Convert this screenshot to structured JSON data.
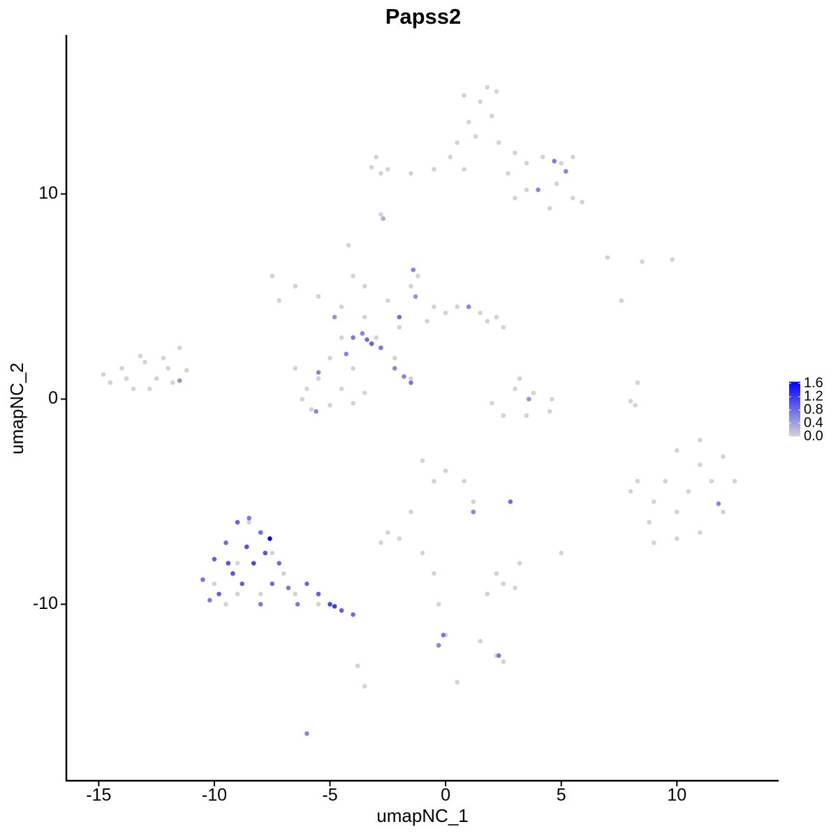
{
  "chart_data": {
    "type": "scatter",
    "title": "Papss2",
    "x_label": "umapNC_1",
    "y_label": "umapNC_2",
    "xlim": [
      -16.4,
      14.4
    ],
    "ylim": [
      -18.6,
      17.75
    ],
    "xticks": [
      -15,
      -10,
      -5,
      0,
      5,
      10
    ],
    "yticks": [
      -10,
      0,
      10
    ],
    "low_color": "#d3d3d3",
    "high_color": "#0000ff",
    "color_lim": [
      0,
      1.65
    ],
    "color_ticks": [
      {
        "value": 0,
        "label": "0.0"
      },
      0.4,
      0.8,
      1.2,
      1.6
    ],
    "x": [
      0.8,
      1.5,
      1.0,
      2.0,
      1.3,
      2.3,
      3.0,
      3.5,
      4.2,
      5.0,
      5.5,
      4.8,
      5.5,
      4.5,
      3.5,
      2.7,
      0.8,
      0.2,
      -0.5,
      -1.5,
      -2.5,
      -3.0,
      -2.8,
      -3.2,
      0.5,
      1.8,
      2.2,
      5.9,
      3.0,
      -2.8,
      -7.5,
      -6.5,
      -5.5,
      -4.5,
      -3.5,
      -4.2,
      -4.0,
      -3.5,
      -2.5,
      -1.5,
      -1.2,
      -0.5,
      0.5,
      1.5,
      2.2,
      2.5,
      1.8,
      -2.0,
      -3.0,
      -4.5,
      -5.0,
      -5.5,
      -6.0,
      -6.2,
      -5.8,
      -5.0,
      -4.5,
      -4.0,
      -4.0,
      -3.5,
      -6.5,
      -7.2,
      -0.8,
      0.0,
      -2.2,
      -1.5,
      -14.5,
      -14.0,
      -13.5,
      -13.0,
      -12.5,
      -12.0,
      -11.5,
      -13.8,
      -12.8,
      -11.8,
      -11.2,
      -14.8,
      -13.2,
      -12.2,
      2.0,
      2.5,
      3.5,
      4.5,
      4.6,
      3.0,
      3.2,
      3.8,
      8.0,
      8.3,
      8.2,
      7.0,
      8.5,
      9.8,
      7.6,
      8.0,
      8.8,
      9.0,
      10.0,
      11.0,
      12.0,
      12.5,
      12.0,
      11.0,
      10.0,
      9.5,
      10.5,
      11.5,
      10.0,
      9.0,
      11.0,
      8.3,
      -1.0,
      0.0,
      0.8,
      1.2,
      -0.5,
      -1.5,
      -2.5,
      -2.8,
      -2.0,
      -1.0,
      -0.5,
      -0.3,
      0.0,
      -0.3,
      1.5,
      2.2,
      2.5,
      1.8,
      2.5,
      3.0,
      2.2,
      3.2,
      5.0,
      -3.5,
      -3.8,
      0.5,
      -10.0,
      -9.0,
      -8.0,
      -9.5,
      -8.5,
      -7.5,
      -6.5,
      -5.5,
      -9.0,
      -7.0,
      4.7,
      5.2,
      4.0,
      -2.7,
      -3.2,
      -2.8,
      -3.4,
      -2.2,
      -1.8,
      -1.5,
      -4.3,
      -4.0,
      -2.0,
      -1.4,
      -5.5,
      -5.6,
      -1.3,
      1.0,
      -4.8,
      -3.6,
      -11.5,
      3.6,
      11.8,
      1.2,
      2.8,
      -0.1,
      -0.3,
      2.3,
      -6.0,
      -10.5,
      -10.0,
      -9.5,
      -9.0,
      -8.5,
      -8.0,
      -7.8,
      -9.2,
      -8.8,
      -8.3,
      -7.5,
      -9.8,
      -10.2,
      -8.0,
      -6.8,
      -6.0,
      -5.5,
      -5.0,
      -4.8,
      -4.5,
      -4.0,
      -9.4,
      -8.6,
      -7.2,
      -6.4,
      -7.6
    ],
    "values": [
      14.8,
      14.5,
      13.5,
      13.8,
      12.8,
      12.5,
      12.0,
      11.5,
      11.8,
      11.5,
      11.8,
      10.5,
      9.8,
      9.3,
      10.2,
      11.0,
      11.2,
      11.8,
      11.2,
      11.0,
      11.2,
      11.8,
      11.0,
      11.3,
      12.5,
      15.2,
      15.0,
      9.6,
      9.8,
      9.0,
      6.0,
      5.5,
      5.0,
      4.5,
      4.0,
      7.5,
      6.0,
      5.5,
      4.8,
      5.5,
      6.0,
      4.5,
      4.5,
      4.2,
      4.0,
      3.5,
      3.8,
      3.5,
      3.0,
      3.0,
      2.0,
      1.0,
      0.5,
      0.0,
      -0.5,
      -0.3,
      0.5,
      1.5,
      -0.2,
      0.3,
      1.5,
      4.8,
      3.8,
      4.2,
      2.0,
      1.0,
      0.8,
      1.5,
      0.5,
      1.8,
      1.0,
      1.5,
      2.5,
      1.0,
      0.5,
      0.8,
      1.4,
      1.2,
      2.1,
      2.0,
      -0.2,
      -0.8,
      -0.8,
      -0.6,
      0.0,
      0.5,
      1.0,
      0.3,
      -0.1,
      0.8,
      -0.3,
      6.9,
      6.7,
      6.8,
      4.8,
      -4.5,
      -6.0,
      -7.0,
      -6.8,
      -6.5,
      -5.5,
      -4.0,
      -2.8,
      -2.0,
      -2.5,
      -4.0,
      -4.5,
      -4.0,
      -5.5,
      -5.0,
      -3.2,
      -4.0,
      -3.0,
      -3.5,
      -4.0,
      -5.0,
      -4.0,
      -5.5,
      -6.5,
      -7.0,
      -6.8,
      -7.5,
      -8.5,
      -10.0,
      -11.5,
      -12.0,
      -11.8,
      -12.5,
      -12.8,
      -9.5,
      -9.0,
      -9.2,
      -8.5,
      -8.0,
      -7.5,
      -14.0,
      -13.0,
      -13.8,
      -9.0,
      -8.0,
      -9.5,
      -10.0,
      -6.0,
      -7.5,
      -9.5,
      -10.0,
      -9.5,
      -8.5,
      11.6,
      11.1,
      10.2,
      8.8,
      2.7,
      2.5,
      2.9,
      1.5,
      1.1,
      0.8,
      2.2,
      3.0,
      4.0,
      6.3,
      1.3,
      -0.6,
      5.0,
      4.5,
      4.0,
      3.2,
      0.9,
      0.0,
      -5.1,
      -5.5,
      -5.0,
      -11.5,
      -12.0,
      -12.5,
      -16.3,
      -8.8,
      -7.8,
      -7.0,
      -6.0,
      -5.8,
      -6.5,
      -7.5,
      -8.5,
      -9.0,
      -8.0,
      -9.0,
      -9.5,
      -9.8,
      -10.0,
      -9.2,
      -9.0,
      -9.5,
      -10.0,
      -10.1,
      -10.3,
      -10.5,
      -8.0,
      -7.2,
      -8.0,
      -10.0,
      -6.8
    ],
    "expression": [
      0,
      0,
      0,
      0,
      0,
      0,
      0,
      0,
      0,
      0,
      0,
      0,
      0,
      0,
      0,
      0,
      0,
      0,
      0,
      0,
      0,
      0,
      0,
      0,
      0,
      0,
      0,
      0,
      0,
      0,
      0,
      0,
      0,
      0,
      0,
      0,
      0,
      0,
      0,
      0,
      0,
      0,
      0,
      0,
      0,
      0,
      0,
      0,
      0,
      0,
      0,
      0,
      0,
      0,
      0,
      0,
      0,
      0,
      0,
      0,
      0,
      0,
      0,
      0,
      0,
      0,
      0,
      0,
      0,
      0,
      0,
      0,
      0,
      0,
      0,
      0,
      0,
      0,
      0,
      0,
      0,
      0,
      0,
      0,
      0,
      0,
      0,
      0,
      0,
      0,
      0,
      0,
      0,
      0,
      0,
      0,
      0,
      0,
      0,
      0,
      0,
      0,
      0,
      0,
      0,
      0,
      0,
      0,
      0,
      0,
      0,
      0,
      0,
      0,
      0,
      0,
      0,
      0,
      0,
      0,
      0,
      0,
      0,
      0,
      0,
      0,
      0,
      0,
      0,
      0,
      0,
      0,
      0,
      0,
      0,
      0,
      0,
      0,
      0,
      0,
      0,
      0,
      0,
      0,
      0,
      0,
      0,
      0,
      0.7,
      0.6,
      0.6,
      0.3,
      0.9,
      0.7,
      0.8,
      0.6,
      0.6,
      0.7,
      0.6,
      0.7,
      0.8,
      0.6,
      0.6,
      0.6,
      0.5,
      0.6,
      0.5,
      0.6,
      0.5,
      0.5,
      0.6,
      0.6,
      0.8,
      0.7,
      0.6,
      0.7,
      0.6,
      0.7,
      0.9,
      0.8,
      0.9,
      0.7,
      0.8,
      1.0,
      1.0,
      0.9,
      1.1,
      0.8,
      0.9,
      0.7,
      0.7,
      0.7,
      0.8,
      0.9,
      1.1,
      1.2,
      0.9,
      0.8,
      1.0,
      1.0,
      0.8,
      0.7,
      1.6
    ]
  }
}
